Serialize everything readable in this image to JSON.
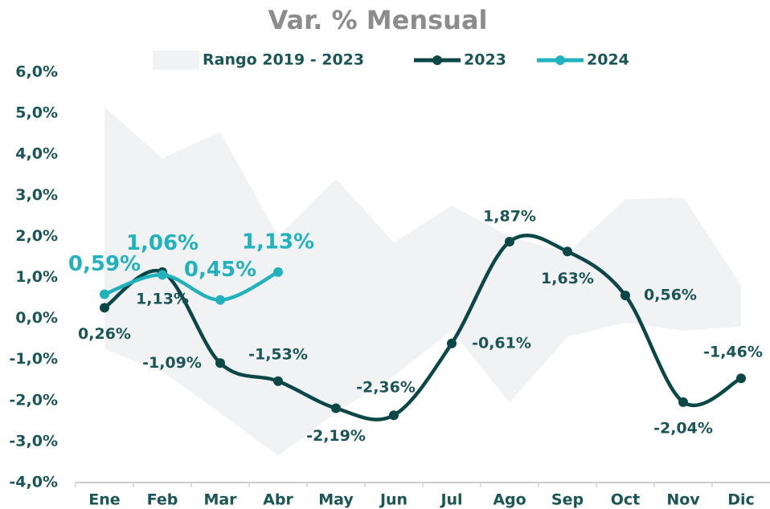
{
  "chart_data": {
    "type": "line",
    "title": "Var. % Mensual",
    "categories": [
      "Ene",
      "Feb",
      "Mar",
      "Abr",
      "May",
      "Jun",
      "Jul",
      "Ago",
      "Sep",
      "Oct",
      "Nov",
      "Dic"
    ],
    "range": {
      "name": "Rango 2019 - 2023",
      "color": "#f1f2f4",
      "upper": [
        5.15,
        3.9,
        4.55,
        2.0,
        3.4,
        1.85,
        2.75,
        2.0,
        1.6,
        2.9,
        2.95,
        0.8
      ],
      "lower": [
        -0.75,
        -1.3,
        -2.3,
        -3.35,
        -2.3,
        -1.4,
        -0.3,
        -2.05,
        -0.45,
        -0.1,
        -0.3,
        -0.2
      ]
    },
    "series": [
      {
        "name": "2023",
        "color": "#0b4747",
        "values": [
          0.26,
          1.13,
          -1.09,
          -1.53,
          -2.19,
          -2.36,
          -0.61,
          1.87,
          1.63,
          0.56,
          -2.04,
          -1.46
        ],
        "value_labels": [
          "0,26%",
          "1,13%",
          "-1,09%",
          "-1,53%",
          "-2,19%",
          "-2,36%",
          "-0,61%",
          "1,87%",
          "1,63%",
          "0,56%",
          "-2,04%",
          "-1,46%"
        ]
      },
      {
        "name": "2024",
        "color": "#22b2bd",
        "values": [
          0.59,
          1.06,
          0.45,
          1.13,
          null,
          null,
          null,
          null,
          null,
          null,
          null,
          null
        ],
        "value_labels": [
          "0,59%",
          "1,06%",
          "0,45%",
          "1,13%",
          null,
          null,
          null,
          null,
          null,
          null,
          null,
          null
        ]
      }
    ],
    "ylim": [
      -4,
      6
    ],
    "yticks": [
      {
        "value": -4,
        "label": "-4,0%"
      },
      {
        "value": -3,
        "label": "-3,0%"
      },
      {
        "value": -2,
        "label": "-2,0%"
      },
      {
        "value": -1,
        "label": "-1,0%"
      },
      {
        "value": 0,
        "label": "0,0%"
      },
      {
        "value": 1,
        "label": "1,0%"
      },
      {
        "value": 2,
        "label": "2,0%"
      },
      {
        "value": 3,
        "label": "3,0%"
      },
      {
        "value": 4,
        "label": "4,0%"
      },
      {
        "value": 5,
        "label": "5,0%"
      },
      {
        "value": 6,
        "label": "6,0%"
      }
    ],
    "grid": false
  }
}
